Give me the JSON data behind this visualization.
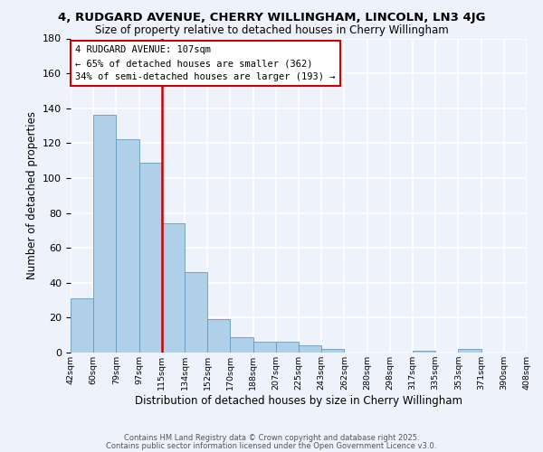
{
  "title": "4, RUDGARD AVENUE, CHERRY WILLINGHAM, LINCOLN, LN3 4JG",
  "subtitle": "Size of property relative to detached houses in Cherry Willingham",
  "bar_values": [
    31,
    136,
    122,
    109,
    74,
    46,
    19,
    9,
    6,
    6,
    4,
    2,
    0,
    0,
    0,
    1,
    0,
    2,
    0,
    0
  ],
  "bar_color": "#afd0e8",
  "bar_edge_color": "#6699bb",
  "vline_x_index": 3.5,
  "vline_color": "#cc0000",
  "xlabel": "Distribution of detached houses by size in Cherry Willingham",
  "ylabel": "Number of detached properties",
  "ylim": [
    0,
    180
  ],
  "yticks": [
    0,
    20,
    40,
    60,
    80,
    100,
    120,
    140,
    160,
    180
  ],
  "annotation_title": "4 RUDGARD AVENUE: 107sqm",
  "annotation_line1": "← 65% of detached houses are smaller (362)",
  "annotation_line2": "34% of semi-detached houses are larger (193) →",
  "footer1": "Contains HM Land Registry data © Crown copyright and database right 2025.",
  "footer2": "Contains public sector information licensed under the Open Government Licence v3.0.",
  "background_color": "#eef2fa",
  "grid_color": "#ffffff",
  "bin_labels": [
    "42sqm",
    "60sqm",
    "79sqm",
    "97sqm",
    "115sqm",
    "134sqm",
    "152sqm",
    "170sqm",
    "188sqm",
    "207sqm",
    "225sqm",
    "243sqm",
    "262sqm",
    "280sqm",
    "298sqm",
    "317sqm",
    "335sqm",
    "353sqm",
    "371sqm",
    "390sqm",
    "408sqm"
  ],
  "n_bins": 20
}
